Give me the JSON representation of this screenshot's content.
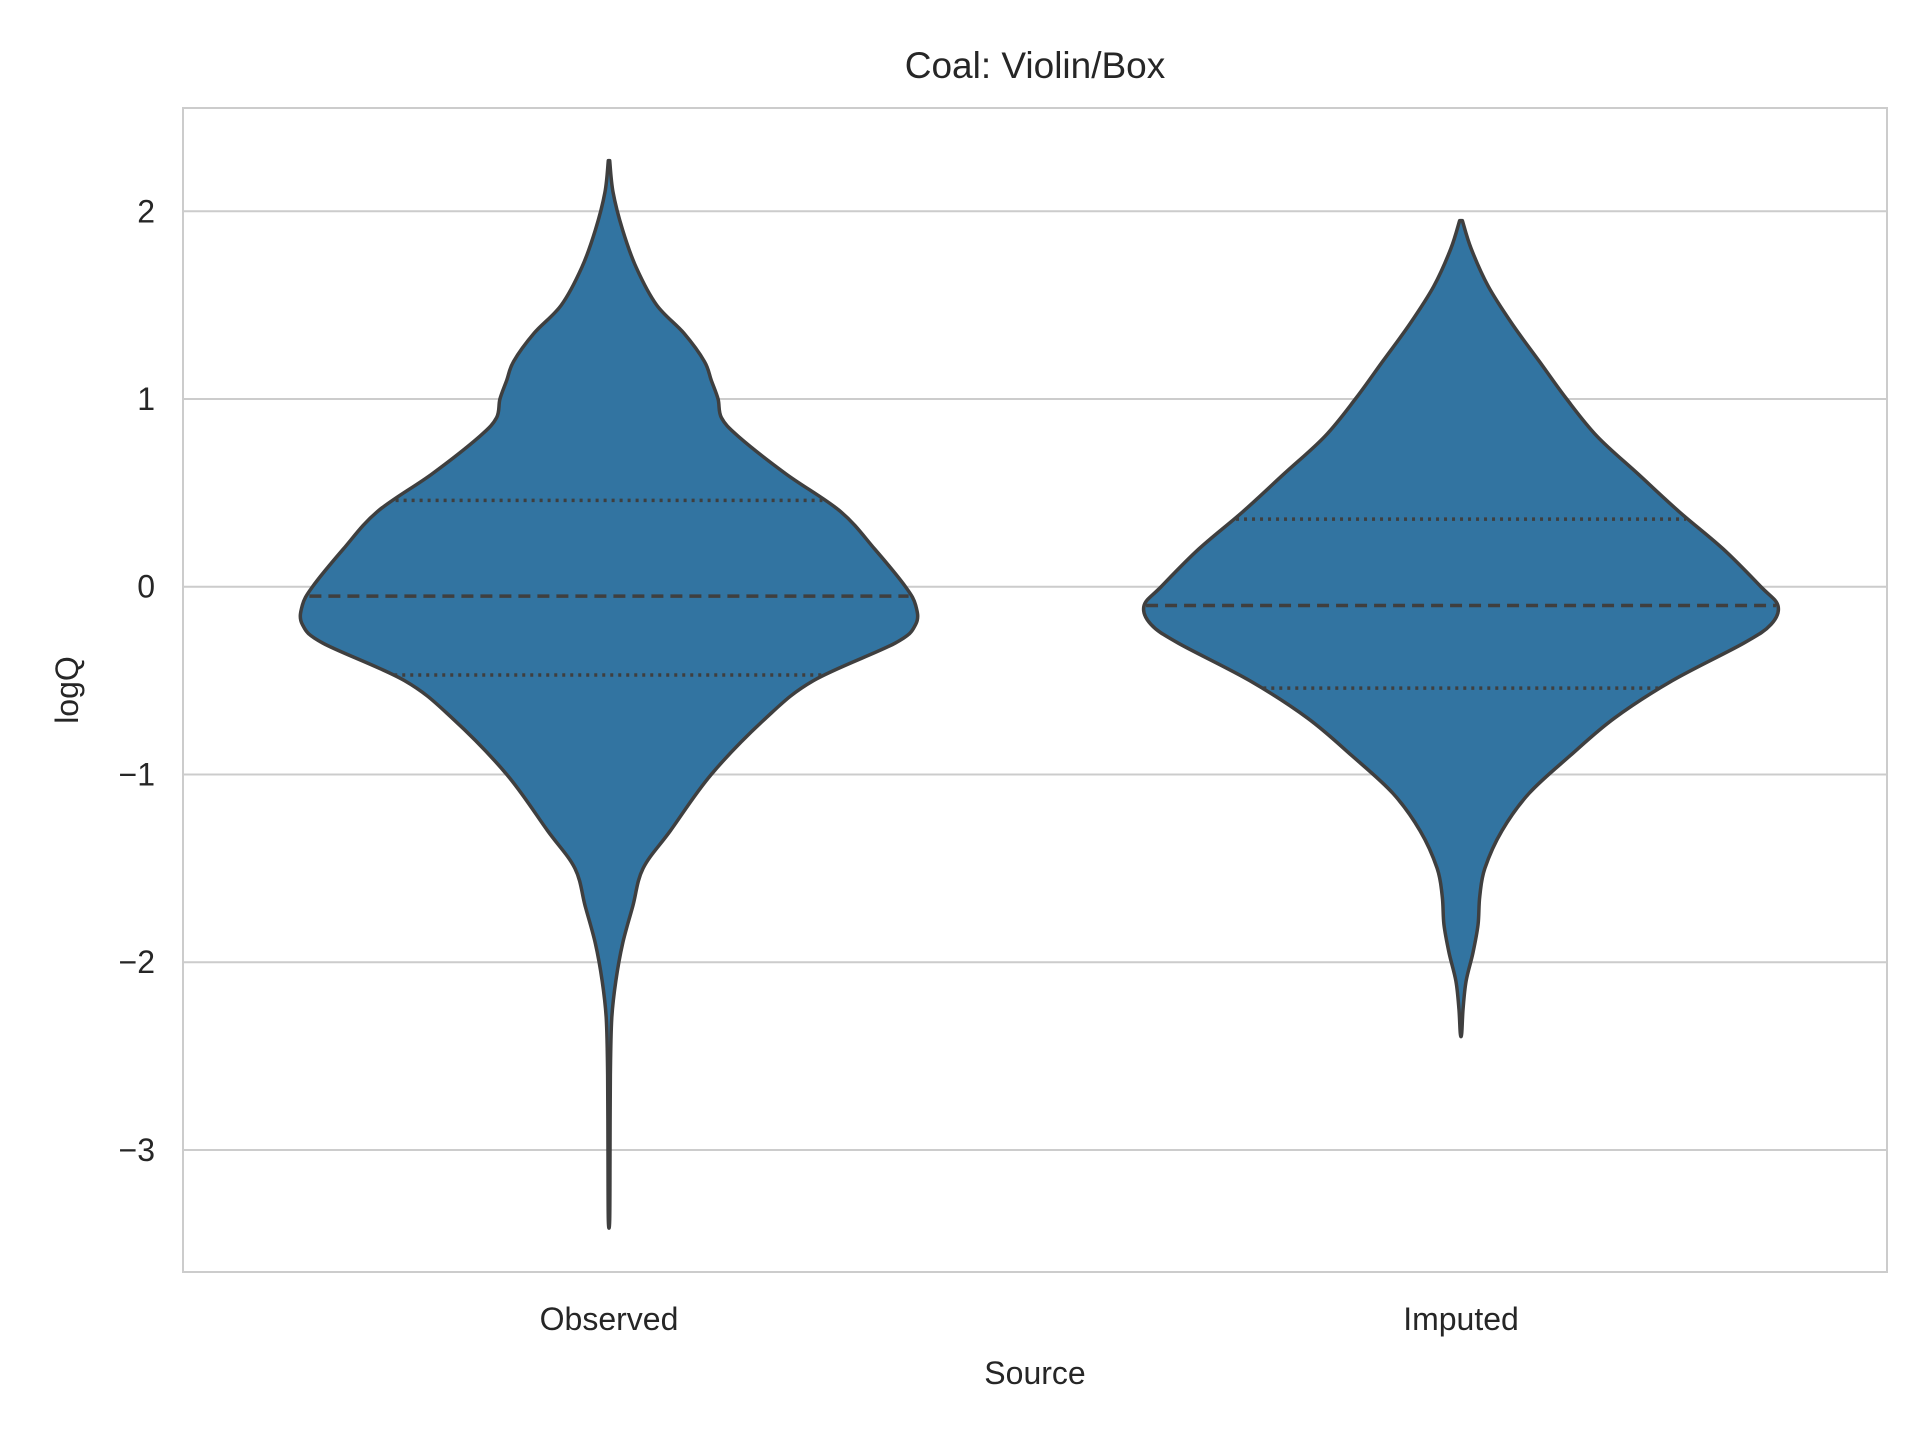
{
  "chart_data": {
    "type": "violin",
    "title": "Coal: Violin/Box",
    "xlabel": "Source",
    "ylabel": "logQ",
    "ylim": [
      -3.65,
      2.55
    ],
    "yticks": [
      2,
      1,
      0,
      -1,
      -2,
      -3
    ],
    "ytick_labels": [
      "2",
      "1",
      "0",
      "−1",
      "−2",
      "−3"
    ],
    "grid": "horizontal",
    "legend": "none",
    "color": "#3274a1",
    "edge_color": "#3f3f3f",
    "categories": [
      "Observed",
      "Imputed"
    ],
    "violins": [
      {
        "category": "Observed",
        "min": -3.37,
        "max": 2.27,
        "q1": -0.47,
        "median": -0.05,
        "q3": 0.46,
        "profile": [
          [
            2.27,
            0.002
          ],
          [
            2.1,
            0.012
          ],
          [
            1.9,
            0.04
          ],
          [
            1.7,
            0.08
          ],
          [
            1.5,
            0.14
          ],
          [
            1.35,
            0.22
          ],
          [
            1.2,
            0.28
          ],
          [
            1.1,
            0.3
          ],
          [
            1.0,
            0.32
          ],
          [
            0.9,
            0.33
          ],
          [
            0.8,
            0.38
          ],
          [
            0.6,
            0.52
          ],
          [
            0.4,
            0.68
          ],
          [
            0.2,
            0.78
          ],
          [
            0.0,
            0.87
          ],
          [
            -0.1,
            0.9
          ],
          [
            -0.2,
            0.9
          ],
          [
            -0.3,
            0.84
          ],
          [
            -0.5,
            0.6
          ],
          [
            -0.7,
            0.46
          ],
          [
            -1.0,
            0.3
          ],
          [
            -1.3,
            0.18
          ],
          [
            -1.5,
            0.1
          ],
          [
            -1.7,
            0.07
          ],
          [
            -1.9,
            0.04
          ],
          [
            -2.1,
            0.02
          ],
          [
            -2.3,
            0.008
          ],
          [
            -2.6,
            0.004
          ],
          [
            -3.0,
            0.003
          ],
          [
            -3.37,
            0.002
          ]
        ]
      },
      {
        "category": "Imputed",
        "min": -2.38,
        "max": 1.95,
        "q1": -0.54,
        "median": -0.1,
        "q3": 0.36,
        "profile": [
          [
            1.95,
            0.004
          ],
          [
            1.8,
            0.03
          ],
          [
            1.6,
            0.08
          ],
          [
            1.4,
            0.15
          ],
          [
            1.2,
            0.23
          ],
          [
            1.0,
            0.31
          ],
          [
            0.8,
            0.4
          ],
          [
            0.6,
            0.52
          ],
          [
            0.4,
            0.64
          ],
          [
            0.2,
            0.77
          ],
          [
            0.0,
            0.88
          ],
          [
            -0.1,
            0.93
          ],
          [
            -0.2,
            0.91
          ],
          [
            -0.3,
            0.83
          ],
          [
            -0.5,
            0.62
          ],
          [
            -0.7,
            0.45
          ],
          [
            -0.9,
            0.32
          ],
          [
            -1.1,
            0.2
          ],
          [
            -1.3,
            0.12
          ],
          [
            -1.5,
            0.07
          ],
          [
            -1.65,
            0.055
          ],
          [
            -1.8,
            0.05
          ],
          [
            -1.95,
            0.035
          ],
          [
            -2.1,
            0.015
          ],
          [
            -2.25,
            0.006
          ],
          [
            -2.38,
            0.002
          ]
        ]
      }
    ]
  }
}
